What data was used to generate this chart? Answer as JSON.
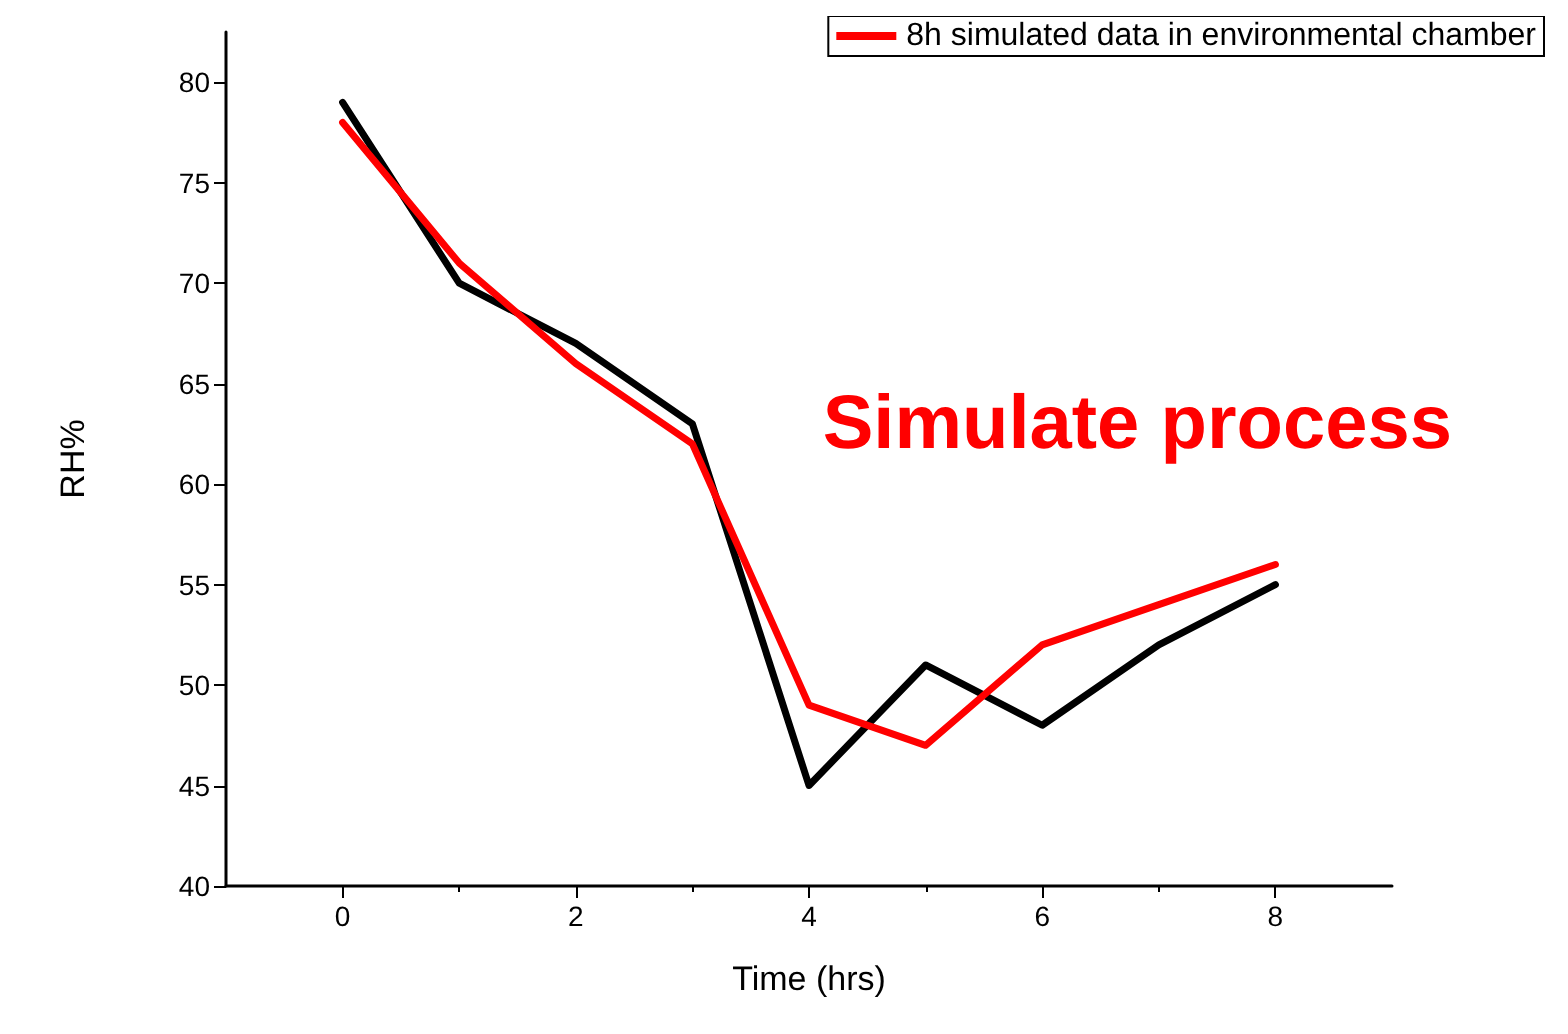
{
  "chart_data": {
    "type": "line",
    "xlabel": "Time (hrs)",
    "ylabel": "RH%",
    "x": [
      0,
      1,
      2,
      3,
      4,
      5,
      6,
      7,
      8
    ],
    "series": [
      {
        "color": "#000000",
        "values": [
          79,
          70,
          67,
          63,
          45,
          51,
          48,
          52,
          55
        ]
      },
      {
        "name": "8h simulated data in environmental chamber",
        "color": "#ff0000",
        "values": [
          78,
          71,
          66,
          62,
          49,
          47,
          52,
          54,
          56
        ]
      }
    ],
    "xlim": [
      -1,
      9
    ],
    "xticks": [
      0,
      2,
      4,
      6,
      8
    ],
    "ylim": [
      40,
      82.5
    ],
    "yticks": [
      40,
      45,
      50,
      55,
      60,
      65,
      70,
      75,
      80
    ],
    "grid": false,
    "legend": "top right",
    "marker": "none",
    "line_style": "solid",
    "annotations": [
      "Simulate process"
    ]
  }
}
